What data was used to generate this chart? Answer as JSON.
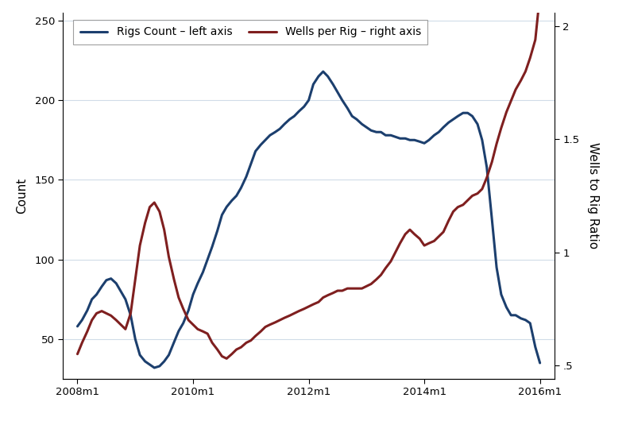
{
  "ylabel_left": "Count",
  "ylabel_right": "Wells to Rig Ratio",
  "legend1": "Rigs Count – left axis",
  "legend2": "Wells per Rig – right axis",
  "color_blue": "#1c3f6e",
  "color_red": "#7f1f1f",
  "left_ylim": [
    25,
    255
  ],
  "right_ylim": [
    0.44,
    2.06
  ],
  "left_yticks": [
    50,
    100,
    150,
    200,
    250
  ],
  "right_yticks": [
    0.5,
    1.0,
    1.5,
    2.0
  ],
  "right_yticklabels": [
    ".5",
    "1",
    "1.5",
    "2"
  ],
  "xtick_labels": [
    "2008m1",
    "2010m1",
    "2012m1",
    "2014m1",
    "2016m1"
  ],
  "xtick_positions": [
    2008.0,
    2010.0,
    2012.0,
    2014.0,
    2016.0
  ],
  "rigs_x": [
    2008.0,
    2008.08,
    2008.17,
    2008.25,
    2008.33,
    2008.42,
    2008.5,
    2008.58,
    2008.67,
    2008.75,
    2008.83,
    2008.92,
    2009.0,
    2009.08,
    2009.17,
    2009.25,
    2009.33,
    2009.42,
    2009.5,
    2009.58,
    2009.67,
    2009.75,
    2009.83,
    2009.92,
    2010.0,
    2010.08,
    2010.17,
    2010.25,
    2010.33,
    2010.42,
    2010.5,
    2010.58,
    2010.67,
    2010.75,
    2010.83,
    2010.92,
    2011.0,
    2011.08,
    2011.17,
    2011.25,
    2011.33,
    2011.42,
    2011.5,
    2011.58,
    2011.67,
    2011.75,
    2011.83,
    2011.92,
    2012.0,
    2012.08,
    2012.17,
    2012.25,
    2012.33,
    2012.42,
    2012.5,
    2012.58,
    2012.67,
    2012.75,
    2012.83,
    2012.92,
    2013.0,
    2013.08,
    2013.17,
    2013.25,
    2013.33,
    2013.42,
    2013.5,
    2013.58,
    2013.67,
    2013.75,
    2013.83,
    2013.92,
    2014.0,
    2014.08,
    2014.17,
    2014.25,
    2014.33,
    2014.42,
    2014.5,
    2014.58,
    2014.67,
    2014.75,
    2014.83,
    2014.92,
    2015.0,
    2015.08,
    2015.17,
    2015.25,
    2015.33,
    2015.42,
    2015.5,
    2015.58,
    2015.67,
    2015.75,
    2015.83,
    2015.92,
    2016.0
  ],
  "rigs_y": [
    58,
    62,
    68,
    75,
    78,
    83,
    87,
    88,
    85,
    80,
    75,
    65,
    50,
    40,
    36,
    34,
    32,
    33,
    36,
    40,
    48,
    55,
    60,
    68,
    78,
    85,
    92,
    100,
    108,
    118,
    128,
    133,
    137,
    140,
    145,
    152,
    160,
    168,
    172,
    175,
    178,
    180,
    182,
    185,
    188,
    190,
    193,
    196,
    200,
    210,
    215,
    218,
    215,
    210,
    205,
    200,
    195,
    190,
    188,
    185,
    183,
    181,
    180,
    180,
    178,
    178,
    177,
    176,
    176,
    175,
    175,
    174,
    173,
    175,
    178,
    180,
    183,
    186,
    188,
    190,
    192,
    192,
    190,
    185,
    175,
    158,
    125,
    95,
    78,
    70,
    65,
    65,
    63,
    62,
    60,
    45,
    35
  ],
  "wpr_x": [
    2008.0,
    2008.08,
    2008.17,
    2008.25,
    2008.33,
    2008.42,
    2008.5,
    2008.58,
    2008.67,
    2008.75,
    2008.83,
    2008.92,
    2009.0,
    2009.08,
    2009.17,
    2009.25,
    2009.33,
    2009.42,
    2009.5,
    2009.58,
    2009.67,
    2009.75,
    2009.83,
    2009.92,
    2010.0,
    2010.08,
    2010.17,
    2010.25,
    2010.33,
    2010.42,
    2010.5,
    2010.58,
    2010.67,
    2010.75,
    2010.83,
    2010.92,
    2011.0,
    2011.08,
    2011.17,
    2011.25,
    2011.33,
    2011.42,
    2011.5,
    2011.58,
    2011.67,
    2011.75,
    2011.83,
    2011.92,
    2012.0,
    2012.08,
    2012.17,
    2012.25,
    2012.33,
    2012.42,
    2012.5,
    2012.58,
    2012.67,
    2012.75,
    2012.83,
    2012.92,
    2013.0,
    2013.08,
    2013.17,
    2013.25,
    2013.33,
    2013.42,
    2013.5,
    2013.58,
    2013.67,
    2013.75,
    2013.83,
    2013.92,
    2014.0,
    2014.08,
    2014.17,
    2014.25,
    2014.33,
    2014.42,
    2014.5,
    2014.58,
    2014.67,
    2014.75,
    2014.83,
    2014.92,
    2015.0,
    2015.08,
    2015.17,
    2015.25,
    2015.33,
    2015.42,
    2015.5,
    2015.58,
    2015.67,
    2015.75,
    2015.83,
    2015.92,
    2016.0
  ],
  "wpr_y": [
    0.55,
    0.6,
    0.65,
    0.7,
    0.73,
    0.74,
    0.73,
    0.72,
    0.7,
    0.68,
    0.66,
    0.73,
    0.88,
    1.03,
    1.13,
    1.2,
    1.22,
    1.18,
    1.1,
    0.98,
    0.88,
    0.8,
    0.75,
    0.7,
    0.68,
    0.66,
    0.65,
    0.64,
    0.6,
    0.57,
    0.54,
    0.53,
    0.55,
    0.57,
    0.58,
    0.6,
    0.61,
    0.63,
    0.65,
    0.67,
    0.68,
    0.69,
    0.7,
    0.71,
    0.72,
    0.73,
    0.74,
    0.75,
    0.76,
    0.77,
    0.78,
    0.8,
    0.81,
    0.82,
    0.83,
    0.83,
    0.84,
    0.84,
    0.84,
    0.84,
    0.85,
    0.86,
    0.88,
    0.9,
    0.93,
    0.96,
    1.0,
    1.04,
    1.08,
    1.1,
    1.08,
    1.06,
    1.03,
    1.04,
    1.05,
    1.07,
    1.09,
    1.14,
    1.18,
    1.2,
    1.21,
    1.23,
    1.25,
    1.26,
    1.28,
    1.33,
    1.4,
    1.48,
    1.55,
    1.62,
    1.67,
    1.72,
    1.76,
    1.8,
    1.86,
    1.94,
    2.14
  ]
}
